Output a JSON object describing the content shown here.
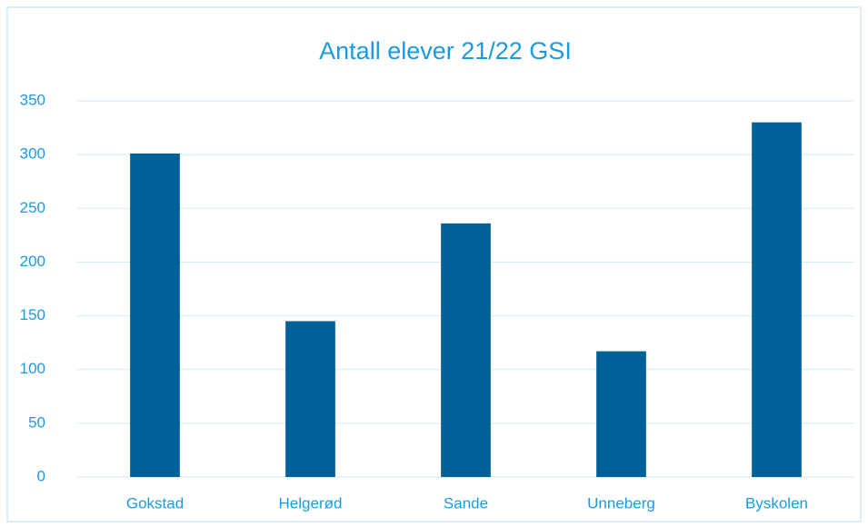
{
  "chart_data": {
    "type": "bar",
    "title": "Antall elever 21/22 GSI",
    "categories": [
      "Gokstad",
      "Helgerød",
      "Sande",
      "Unneberg",
      "Byskolen"
    ],
    "values": [
      301,
      145,
      236,
      117,
      330
    ],
    "color": "#006199",
    "ylim": [
      0,
      350
    ],
    "yticks": [
      0,
      50,
      100,
      150,
      200,
      250,
      300,
      350
    ],
    "grid": true
  }
}
